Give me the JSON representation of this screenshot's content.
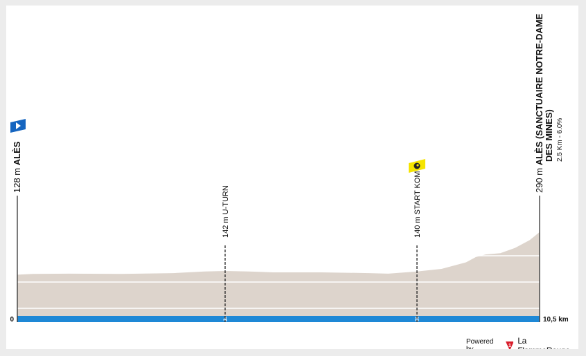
{
  "chart_data": {
    "type": "area",
    "title": "",
    "xlabel": "",
    "ylabel": "",
    "x_unit": "km",
    "y_unit": "m",
    "xlim": [
      0,
      10.5
    ],
    "ylim": [
      0,
      290
    ],
    "grid": true,
    "grid_values": [
      0,
      100,
      200
    ],
    "x_ticks": [
      {
        "km": 0,
        "label": "0"
      },
      {
        "km": 4,
        "label": "4"
      },
      {
        "km": 8,
        "label": "8"
      },
      {
        "km": 10.5,
        "label": "10,5 km"
      }
    ],
    "profile": {
      "x": [
        0,
        0.3,
        1,
        2,
        3,
        3.6,
        4,
        4.5,
        5,
        6,
        7,
        7.4,
        8,
        8.5,
        9,
        9.2,
        9.4,
        9.7,
        10,
        10.3,
        10.5
      ],
      "y": [
        128,
        131,
        132,
        131,
        134,
        140,
        142,
        140,
        137,
        137,
        134,
        132,
        140,
        150,
        175,
        195,
        205,
        210,
        230,
        260,
        290
      ]
    },
    "points": [
      {
        "km": 0,
        "elevation_label": "128 m",
        "name": "ALÈS",
        "icon": "start-flag-icon",
        "icon_color": "#1565c0"
      },
      {
        "km": 4,
        "elevation_label": "142 m",
        "name": "U-TURN"
      },
      {
        "km": 8,
        "elevation_label": "140 m",
        "name": "START KOM",
        "icon": "kom-icon",
        "icon_color": "#f5e400"
      },
      {
        "km": 10.5,
        "elevation_label": "290 m",
        "name": "ALÈS (SANCTUAIRE NOTRE-DAME",
        "name_line2": "DES MINES)",
        "climb": "2.5 Km - 6.0%"
      }
    ],
    "colors": {
      "fill": "#ddd4cc",
      "distance_bar": "#1e88d6",
      "grid": "#ffffff"
    }
  },
  "footer": {
    "powered_by": "Powered by",
    "brand": "La FlammeRouge",
    "brand_color": "#d81e2c"
  }
}
